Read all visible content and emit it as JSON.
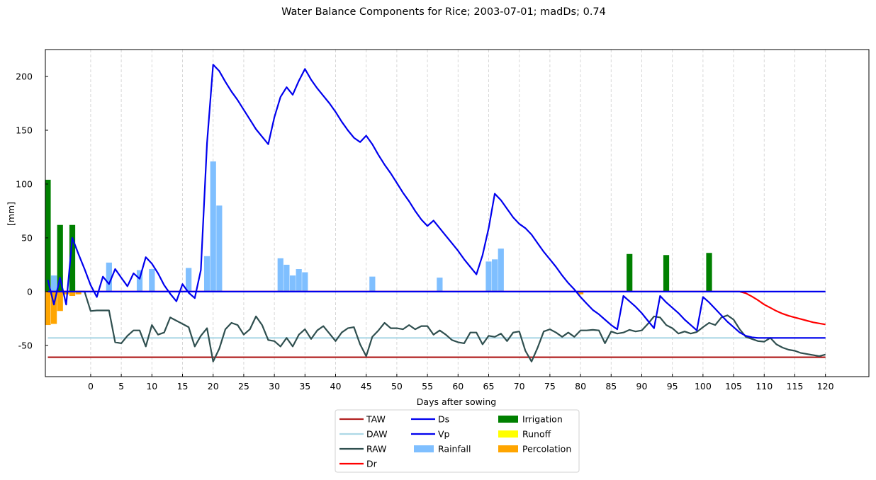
{
  "chart_data": {
    "type": "line",
    "title": "Water Balance Components for Rice; 2003-07-01; madDs; 0.74",
    "xlabel": "Days after sowing",
    "ylabel": "[mm]",
    "xlim": [
      -7.4,
      127.1
    ],
    "ylim": [
      -79,
      225
    ],
    "xticks": [
      0,
      5,
      10,
      15,
      20,
      25,
      30,
      35,
      40,
      45,
      50,
      55,
      60,
      65,
      70,
      75,
      80,
      85,
      90,
      95,
      100,
      105,
      110,
      115,
      120
    ],
    "yticks": [
      -50,
      0,
      50,
      100,
      150,
      200
    ],
    "grid": "vertical dashed lines at x ticks",
    "legend_placement": "below plot, center",
    "legend": [
      "TAW",
      "DAW",
      "RAW",
      "Dr",
      "Ds",
      "Vp",
      "Rainfall",
      "Irrigation",
      "Runoff",
      "Percolation"
    ],
    "colors": {
      "TAW": "#b22222",
      "DAW": "#add8e6",
      "RAW": "#2f4f4f",
      "Dr": "#ff0000",
      "Ds": "#0000ee",
      "Vp": "#0000ee",
      "Rainfall": "#7fbfff",
      "Irrigation": "#008000",
      "Runoff": "#ffff00",
      "Percolation": "#ffa500"
    },
    "series_lines": {
      "TAW": [
        [
          -7,
          -61
        ],
        [
          120,
          -61
        ]
      ],
      "DAW": [
        [
          -7,
          -43
        ],
        [
          120,
          -43
        ]
      ],
      "RAW": [
        [
          -7,
          0
        ],
        [
          -5,
          0
        ],
        [
          -3,
          0
        ],
        [
          -1,
          0
        ],
        [
          0,
          -18
        ],
        [
          1,
          -17.5
        ],
        [
          2,
          -17.5
        ],
        [
          3,
          -17.5
        ],
        [
          4,
          -47
        ],
        [
          5,
          -48
        ],
        [
          6,
          -41
        ],
        [
          7,
          -36
        ],
        [
          8,
          -36
        ],
        [
          9,
          -51
        ],
        [
          10,
          -31
        ],
        [
          11,
          -40
        ],
        [
          12,
          -38
        ],
        [
          13,
          -24
        ],
        [
          14,
          -27
        ],
        [
          15,
          -30
        ],
        [
          16,
          -33
        ],
        [
          17,
          -51
        ],
        [
          18,
          -41
        ],
        [
          19,
          -34
        ],
        [
          20,
          -65
        ],
        [
          21,
          -53
        ],
        [
          22,
          -35
        ],
        [
          23,
          -29
        ],
        [
          24,
          -31
        ],
        [
          25,
          -40
        ],
        [
          26,
          -35
        ],
        [
          27,
          -23
        ],
        [
          28,
          -31
        ],
        [
          29,
          -45
        ],
        [
          30,
          -46
        ],
        [
          31,
          -51
        ],
        [
          32,
          -43
        ],
        [
          33,
          -51
        ],
        [
          34,
          -40
        ],
        [
          35,
          -35
        ],
        [
          36,
          -44
        ],
        [
          37,
          -36
        ],
        [
          38,
          -32
        ],
        [
          39,
          -39
        ],
        [
          40,
          -46
        ],
        [
          41,
          -38
        ],
        [
          42,
          -34
        ],
        [
          43,
          -33
        ],
        [
          44,
          -49
        ],
        [
          45,
          -60
        ],
        [
          46,
          -42
        ],
        [
          47,
          -36
        ],
        [
          48,
          -29
        ],
        [
          49,
          -34
        ],
        [
          50,
          -34
        ],
        [
          51,
          -35
        ],
        [
          52,
          -31
        ],
        [
          53,
          -35
        ],
        [
          54,
          -32
        ],
        [
          55,
          -32
        ],
        [
          56,
          -40
        ],
        [
          57,
          -36
        ],
        [
          58,
          -40
        ],
        [
          59,
          -45
        ],
        [
          60,
          -47
        ],
        [
          61,
          -48
        ],
        [
          62,
          -38
        ],
        [
          63,
          -38
        ],
        [
          64,
          -49
        ],
        [
          65,
          -41
        ],
        [
          66,
          -42
        ],
        [
          67,
          -39
        ],
        [
          68,
          -46
        ],
        [
          69,
          -38
        ],
        [
          70,
          -37
        ],
        [
          71,
          -55
        ],
        [
          72,
          -65
        ],
        [
          73,
          -52
        ],
        [
          74,
          -37
        ],
        [
          75,
          -35
        ],
        [
          76,
          -38
        ],
        [
          77,
          -42
        ],
        [
          78,
          -38
        ],
        [
          79,
          -42
        ],
        [
          80,
          -36
        ],
        [
          81,
          -36
        ],
        [
          82,
          -35.5
        ],
        [
          83,
          -36
        ],
        [
          84,
          -48
        ],
        [
          85,
          -37
        ],
        [
          86,
          -39
        ],
        [
          87,
          -38
        ],
        [
          88,
          -35.5
        ],
        [
          89,
          -37
        ],
        [
          90,
          -36
        ],
        [
          91,
          -30
        ],
        [
          92,
          -23
        ],
        [
          93,
          -24
        ],
        [
          94,
          -31
        ],
        [
          95,
          -34
        ],
        [
          96,
          -39
        ],
        [
          97,
          -37
        ],
        [
          98,
          -39
        ],
        [
          99,
          -37.5
        ],
        [
          100,
          -33
        ],
        [
          101,
          -29
        ],
        [
          102,
          -31
        ],
        [
          103,
          -24
        ],
        [
          104,
          -22
        ],
        [
          105,
          -26
        ],
        [
          106,
          -35
        ],
        [
          107,
          -42
        ],
        [
          108,
          -44
        ],
        [
          109,
          -46
        ],
        [
          110,
          -46.5
        ],
        [
          111,
          -43
        ],
        [
          112,
          -49
        ],
        [
          113,
          -52
        ],
        [
          114,
          -54
        ],
        [
          115,
          -55
        ],
        [
          116,
          -57
        ],
        [
          117,
          -58
        ],
        [
          118,
          -59
        ],
        [
          119,
          -60
        ],
        [
          120,
          -58.5
        ]
      ],
      "Dr": [
        [
          -7,
          0
        ],
        [
          79,
          0
        ],
        [
          106,
          0
        ],
        [
          107,
          -1.5
        ],
        [
          108,
          -4.5
        ],
        [
          109,
          -8
        ],
        [
          110,
          -12
        ],
        [
          111,
          -15
        ],
        [
          112,
          -18
        ],
        [
          113,
          -20.5
        ],
        [
          114,
          -22.5
        ],
        [
          115,
          -24
        ],
        [
          116,
          -25.5
        ],
        [
          117,
          -27
        ],
        [
          118,
          -28.5
        ],
        [
          119,
          -29.5
        ],
        [
          120,
          -30.5
        ]
      ],
      "Ds": [
        [
          -7,
          11
        ],
        [
          -6,
          -12
        ],
        [
          -5,
          13
        ],
        [
          -4,
          -12
        ],
        [
          -3,
          50
        ],
        [
          -2,
          35
        ],
        [
          -1,
          21
        ],
        [
          0,
          6
        ],
        [
          1,
          -5
        ],
        [
          2,
          14
        ],
        [
          3,
          7
        ],
        [
          4,
          21
        ],
        [
          5,
          13
        ],
        [
          6,
          5
        ],
        [
          7,
          17
        ],
        [
          8,
          12
        ],
        [
          9,
          32
        ],
        [
          10,
          26
        ],
        [
          11,
          17
        ],
        [
          12,
          6
        ],
        [
          13,
          -2
        ],
        [
          14,
          -9
        ],
        [
          15,
          7
        ],
        [
          16,
          -1
        ],
        [
          17,
          -6
        ],
        [
          18,
          20
        ],
        [
          19,
          138
        ],
        [
          20,
          211
        ],
        [
          21,
          205
        ],
        [
          22,
          195
        ],
        [
          23,
          186
        ],
        [
          24,
          178
        ],
        [
          25,
          169
        ],
        [
          26,
          160
        ],
        [
          27,
          151
        ],
        [
          28,
          144
        ],
        [
          29,
          137
        ],
        [
          30,
          162
        ],
        [
          31,
          181
        ],
        [
          32,
          190
        ],
        [
          33,
          183
        ],
        [
          34,
          196
        ],
        [
          35,
          207
        ],
        [
          36,
          197
        ],
        [
          37,
          189
        ],
        [
          38,
          182
        ],
        [
          39,
          175
        ],
        [
          40,
          167
        ],
        [
          41,
          158
        ],
        [
          42,
          150
        ],
        [
          43,
          143
        ],
        [
          44,
          139
        ],
        [
          45,
          145
        ],
        [
          46,
          137
        ],
        [
          47,
          127
        ],
        [
          48,
          118
        ],
        [
          49,
          110
        ],
        [
          50,
          101
        ],
        [
          51,
          92
        ],
        [
          52,
          84
        ],
        [
          53,
          75
        ],
        [
          54,
          67
        ],
        [
          55,
          61
        ],
        [
          56,
          66
        ],
        [
          57,
          59
        ],
        [
          58,
          52
        ],
        [
          59,
          45
        ],
        [
          60,
          38
        ],
        [
          61,
          30
        ],
        [
          62,
          23
        ],
        [
          63,
          16
        ],
        [
          64,
          34
        ],
        [
          65,
          59
        ],
        [
          66,
          91
        ],
        [
          67,
          85
        ],
        [
          68,
          77
        ],
        [
          69,
          69
        ],
        [
          70,
          63
        ],
        [
          71,
          59
        ],
        [
          72,
          53
        ],
        [
          73,
          45
        ],
        [
          74,
          37
        ],
        [
          75,
          30
        ],
        [
          76,
          23
        ],
        [
          77,
          15
        ],
        [
          78,
          8
        ],
        [
          79,
          2
        ],
        [
          80,
          -5
        ],
        [
          81,
          -11
        ],
        [
          82,
          -17
        ],
        [
          83,
          -21
        ],
        [
          84,
          -26
        ],
        [
          85,
          -31
        ],
        [
          86,
          -35
        ],
        [
          87,
          -4
        ],
        [
          88,
          -9
        ],
        [
          89,
          -14
        ],
        [
          90,
          -20
        ],
        [
          91,
          -27
        ],
        [
          92,
          -34
        ],
        [
          93,
          -4
        ],
        [
          94,
          -10
        ],
        [
          95,
          -15
        ],
        [
          96,
          -20
        ],
        [
          97,
          -26
        ],
        [
          98,
          -31
        ],
        [
          99,
          -36
        ],
        [
          100,
          -5
        ],
        [
          101,
          -10
        ],
        [
          102,
          -16
        ],
        [
          103,
          -22
        ],
        [
          104,
          -28
        ],
        [
          105,
          -33
        ],
        [
          106,
          -38
        ],
        [
          107,
          -41
        ],
        [
          108,
          -42.5
        ],
        [
          109,
          -43
        ],
        [
          120,
          -43
        ]
      ],
      "Vp": [
        [
          -7,
          0
        ],
        [
          120,
          0
        ]
      ]
    },
    "series_bars": {
      "Irrigation": [
        [
          -7,
          104
        ],
        [
          -5,
          62
        ],
        [
          -3,
          62
        ],
        [
          88,
          35
        ],
        [
          94,
          34
        ],
        [
          101,
          36
        ]
      ],
      "Rainfall": [
        [
          -6,
          15
        ],
        [
          -5,
          15
        ],
        [
          -3,
          10
        ],
        [
          3,
          27
        ],
        [
          8,
          20
        ],
        [
          10,
          21
        ],
        [
          16,
          22
        ],
        [
          19,
          33
        ],
        [
          20,
          121
        ],
        [
          21,
          80
        ],
        [
          31,
          31
        ],
        [
          32,
          25
        ],
        [
          33,
          15
        ],
        [
          34,
          21
        ],
        [
          35,
          18
        ],
        [
          46,
          14
        ],
        [
          57,
          13
        ],
        [
          65,
          28
        ],
        [
          66,
          30
        ],
        [
          67,
          40
        ]
      ],
      "Runoff": [],
      "Percolation": [
        [
          -7,
          -31
        ],
        [
          -6,
          -30
        ],
        [
          -5,
          -18
        ],
        [
          -4,
          -2.5
        ],
        [
          -3,
          -4
        ],
        [
          -2,
          -2.5
        ],
        [
          80,
          -2.5
        ]
      ]
    }
  }
}
